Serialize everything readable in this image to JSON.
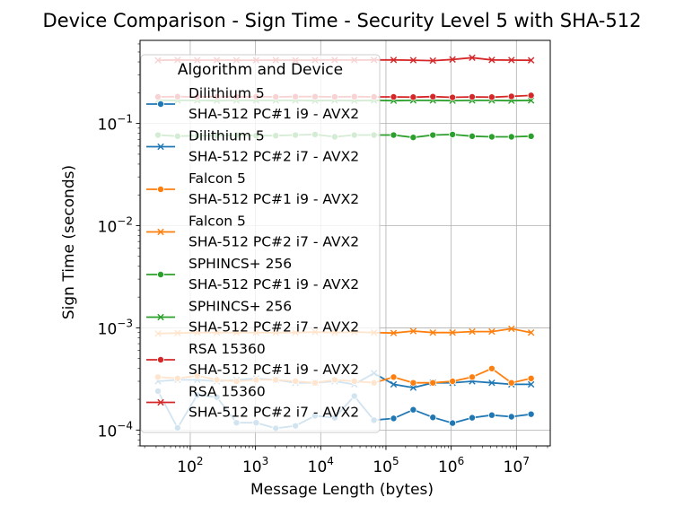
{
  "chart_data": {
    "type": "line",
    "title": "Device Comparison - Sign Time - Security Level 5 with SHA-512",
    "xlabel": "Message Length (bytes)",
    "ylabel": "Sign Time (seconds)",
    "x_scale": "log",
    "y_scale": "log",
    "xlim": [
      17,
      33000000
    ],
    "ylim": [
      7e-05,
      0.65
    ],
    "grid": true,
    "x_ticks": [
      {
        "label_base": "10",
        "label_exp": "2",
        "value": 100
      },
      {
        "label_base": "10",
        "label_exp": "3",
        "value": 1000
      },
      {
        "label_base": "10",
        "label_exp": "4",
        "value": 10000
      },
      {
        "label_base": "10",
        "label_exp": "5",
        "value": 100000
      },
      {
        "label_base": "10",
        "label_exp": "6",
        "value": 1000000
      },
      {
        "label_base": "10",
        "label_exp": "7",
        "value": 10000000
      }
    ],
    "y_ticks": [
      {
        "label_base": "10",
        "label_exp": "−4",
        "value": 0.0001
      },
      {
        "label_base": "10",
        "label_exp": "−3",
        "value": 0.001
      },
      {
        "label_base": "10",
        "label_exp": "−2",
        "value": 0.01
      },
      {
        "label_base": "10",
        "label_exp": "−1",
        "value": 0.1
      }
    ],
    "x": [
      32,
      64,
      128,
      256,
      512,
      1024,
      2048,
      4096,
      8192,
      16384,
      32768,
      65536,
      131072,
      262144,
      524288,
      1048576,
      2097152,
      4194304,
      8388608,
      16777216
    ],
    "legend": {
      "title": "Algorithm and Device",
      "position": "upper left"
    },
    "series": [
      {
        "name_line1": "Dilithium 5",
        "name_line2": "SHA-512 PC#1 i9 - AVX2",
        "color": "#1f77b4",
        "marker": "circle",
        "values": [
          0.00024,
          0.000105,
          0.00022,
          0.00021,
          0.000118,
          0.000118,
          0.000104,
          0.00011,
          0.000138,
          0.000132,
          0.000215,
          0.000125,
          0.00013,
          0.000158,
          0.000133,
          0.000117,
          0.000132,
          0.00014,
          0.000135,
          0.000143
        ]
      },
      {
        "name_line1": "Dilithium 5",
        "name_line2": "SHA-512 PC#2 i7 - AVX2",
        "color": "#1f77b4",
        "marker": "x",
        "values": [
          0.0003,
          0.00031,
          0.00031,
          0.0003,
          0.00031,
          0.00032,
          0.00031,
          0.00029,
          0.00029,
          0.0003,
          0.00028,
          0.00036,
          0.00028,
          0.00026,
          0.00029,
          0.00029,
          0.0003,
          0.00029,
          0.00028,
          0.00028
        ]
      },
      {
        "name_line1": "Falcon 5",
        "name_line2": "SHA-512 PC#1 i9 - AVX2",
        "color": "#ff7f0e",
        "marker": "circle",
        "values": [
          0.00033,
          0.00032,
          0.00034,
          0.00031,
          0.0003,
          0.00031,
          0.00031,
          0.0003,
          0.00029,
          0.00031,
          0.0003,
          0.00029,
          0.00033,
          0.00029,
          0.00029,
          0.0003,
          0.00033,
          0.0004,
          0.00029,
          0.00032
        ]
      },
      {
        "name_line1": "Falcon 5",
        "name_line2": "SHA-512 PC#2 i7 - AVX2",
        "color": "#ff7f0e",
        "marker": "x",
        "values": [
          0.00088,
          0.00089,
          0.0009,
          0.0009,
          0.0009,
          0.0009,
          0.0009,
          0.0009,
          0.00091,
          0.0009,
          0.00091,
          0.0009,
          0.00089,
          0.00093,
          0.0009,
          0.0009,
          0.00092,
          0.00092,
          0.00098,
          0.0009
        ]
      },
      {
        "name_line1": "SPHINCS+ 256",
        "name_line2": "SHA-512 PC#1 i9 - AVX2",
        "color": "#2ca02c",
        "marker": "circle",
        "values": [
          0.077,
          0.075,
          0.076,
          0.076,
          0.077,
          0.076,
          0.076,
          0.077,
          0.078,
          0.074,
          0.077,
          0.077,
          0.077,
          0.073,
          0.077,
          0.078,
          0.075,
          0.074,
          0.074,
          0.075
        ]
      },
      {
        "name_line1": "SPHINCS+ 256",
        "name_line2": "SHA-512 PC#2 i7 - AVX2",
        "color": "#2ca02c",
        "marker": "x",
        "values": [
          0.168,
          0.168,
          0.168,
          0.167,
          0.168,
          0.168,
          0.168,
          0.168,
          0.167,
          0.168,
          0.167,
          0.168,
          0.167,
          0.168,
          0.168,
          0.167,
          0.168,
          0.168,
          0.167,
          0.168
        ]
      },
      {
        "name_line1": "RSA 15360",
        "name_line2": "SHA-512 PC#1 i9 - AVX2",
        "color": "#d62728",
        "marker": "circle",
        "values": [
          0.182,
          0.183,
          0.182,
          0.183,
          0.182,
          0.183,
          0.182,
          0.183,
          0.183,
          0.182,
          0.183,
          0.182,
          0.182,
          0.181,
          0.183,
          0.18,
          0.182,
          0.181,
          0.184,
          0.188
        ]
      },
      {
        "name_line1": "RSA 15360",
        "name_line2": "SHA-512 PC#2 i7 - AVX2",
        "color": "#d62728",
        "marker": "x",
        "values": [
          0.415,
          0.418,
          0.416,
          0.417,
          0.416,
          0.416,
          0.417,
          0.416,
          0.417,
          0.418,
          0.417,
          0.418,
          0.418,
          0.416,
          0.412,
          0.423,
          0.44,
          0.418,
          0.417,
          0.415
        ]
      }
    ]
  }
}
